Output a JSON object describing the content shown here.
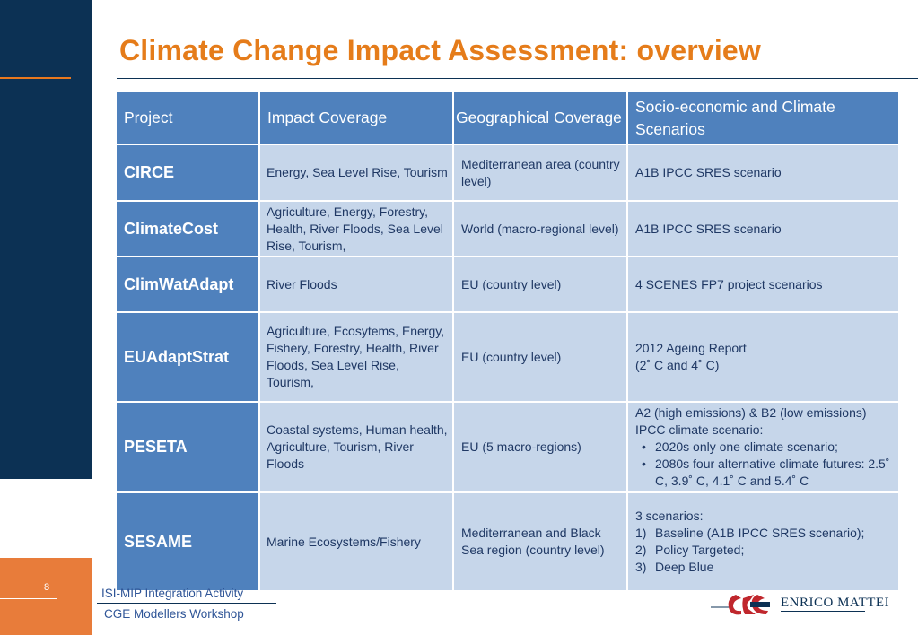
{
  "title": "Climate Change Impact Assessment: overview",
  "table": {
    "headers": [
      "Project",
      "Impact Coverage",
      "Geographical Coverage",
      "Socio-economic and Climate Scenarios"
    ],
    "rows": [
      {
        "project": "CIRCE",
        "impact": "Energy, Sea Level Rise, Tourism",
        "geo": "Mediterranean area (country level)",
        "scenario": "A1B IPCC SRES scenario"
      },
      {
        "project": "ClimateCost",
        "impact": "Agriculture, Energy, Forestry, Health, River Floods, Sea Level Rise, Tourism,",
        "geo": "World (macro-regional level)",
        "scenario": "A1B IPCC SRES scenario"
      },
      {
        "project": "ClimWatAdapt",
        "impact": "River Floods",
        "geo": "EU (country level)",
        "scenario": "4 SCENES FP7 project scenarios"
      },
      {
        "project": "EUAdaptStrat",
        "impact": "Agriculture, Ecosytems, Energy, Fishery, Forestry, Health, River Floods, Sea Level Rise, Tourism,",
        "geo": "EU (country level)",
        "scenario_line1": "2012 Ageing Report",
        "scenario_line2": "(2˚ C and 4˚ C)"
      },
      {
        "project": "PESETA",
        "impact": "Coastal systems, Human health, Agriculture, Tourism, River Floods",
        "geo": "EU (5 macro-regions)",
        "scenario_intro": "A2 (high emissions) & B2 (low emissions) IPCC climate scenario:",
        "scenario_bullets": [
          "2020s only one climate scenario;",
          "2080s four alternative climate futures: 2.5˚ C, 3.9˚ C, 4.1˚ C and 5.4˚ C"
        ]
      },
      {
        "project": "SESAME",
        "impact": "Marine Ecosystems/Fishery",
        "geo": "Mediterranean and Black Sea region (country level)",
        "scenario_intro": "3 scenarios:",
        "scenario_list": [
          {
            "num": "1)",
            "text": "Baseline (A1B IPCC SRES scenario);"
          },
          {
            "num": "2)",
            "text": "Policy Targeted;"
          },
          {
            "num": "3)",
            "text": "Deep Blue"
          }
        ]
      }
    ]
  },
  "footer": {
    "page_number": "8",
    "line1": "ISI-MIP Integration Activity",
    "line2": "CGE Modellers Workshop",
    "logo_text": "ENRICO MATTEI"
  },
  "colors": {
    "navy": "#0c3154",
    "orange": "#e57c1a",
    "header_blue": "#4f81bd",
    "cell_light": "#c6d6ea",
    "cell_text": "#1f3864"
  }
}
